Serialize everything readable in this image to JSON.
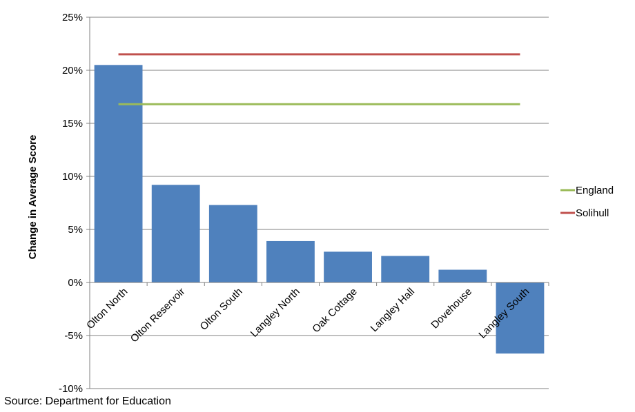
{
  "chart_data": {
    "type": "bar",
    "ylabel": "Change in  Average Score",
    "ylim": [
      -0.1,
      0.25
    ],
    "yticks": [
      -0.1,
      -0.05,
      0,
      0.05,
      0.1,
      0.15,
      0.2,
      0.25
    ],
    "ytick_labels": [
      "-10%",
      "-5%",
      "0%",
      "5%",
      "10%",
      "15%",
      "20%",
      "25%"
    ],
    "grid": true,
    "categories": [
      "Olton North",
      "Olton Reservoir",
      "Olton South",
      "Langley North",
      "Oak Cottage",
      "Langley Hall",
      "Dovehouse",
      "Langley South"
    ],
    "values": [
      0.205,
      0.092,
      0.073,
      0.039,
      0.029,
      0.025,
      0.012,
      -0.067
    ],
    "bar_color": "#4F81BD",
    "reference_lines": [
      {
        "name": "England",
        "value": 0.168,
        "color": "#9BBB59"
      },
      {
        "name": "Solihull",
        "value": 0.215,
        "color": "#C0504D"
      }
    ],
    "legend_position": "right"
  },
  "source": "Source: Department for Education"
}
